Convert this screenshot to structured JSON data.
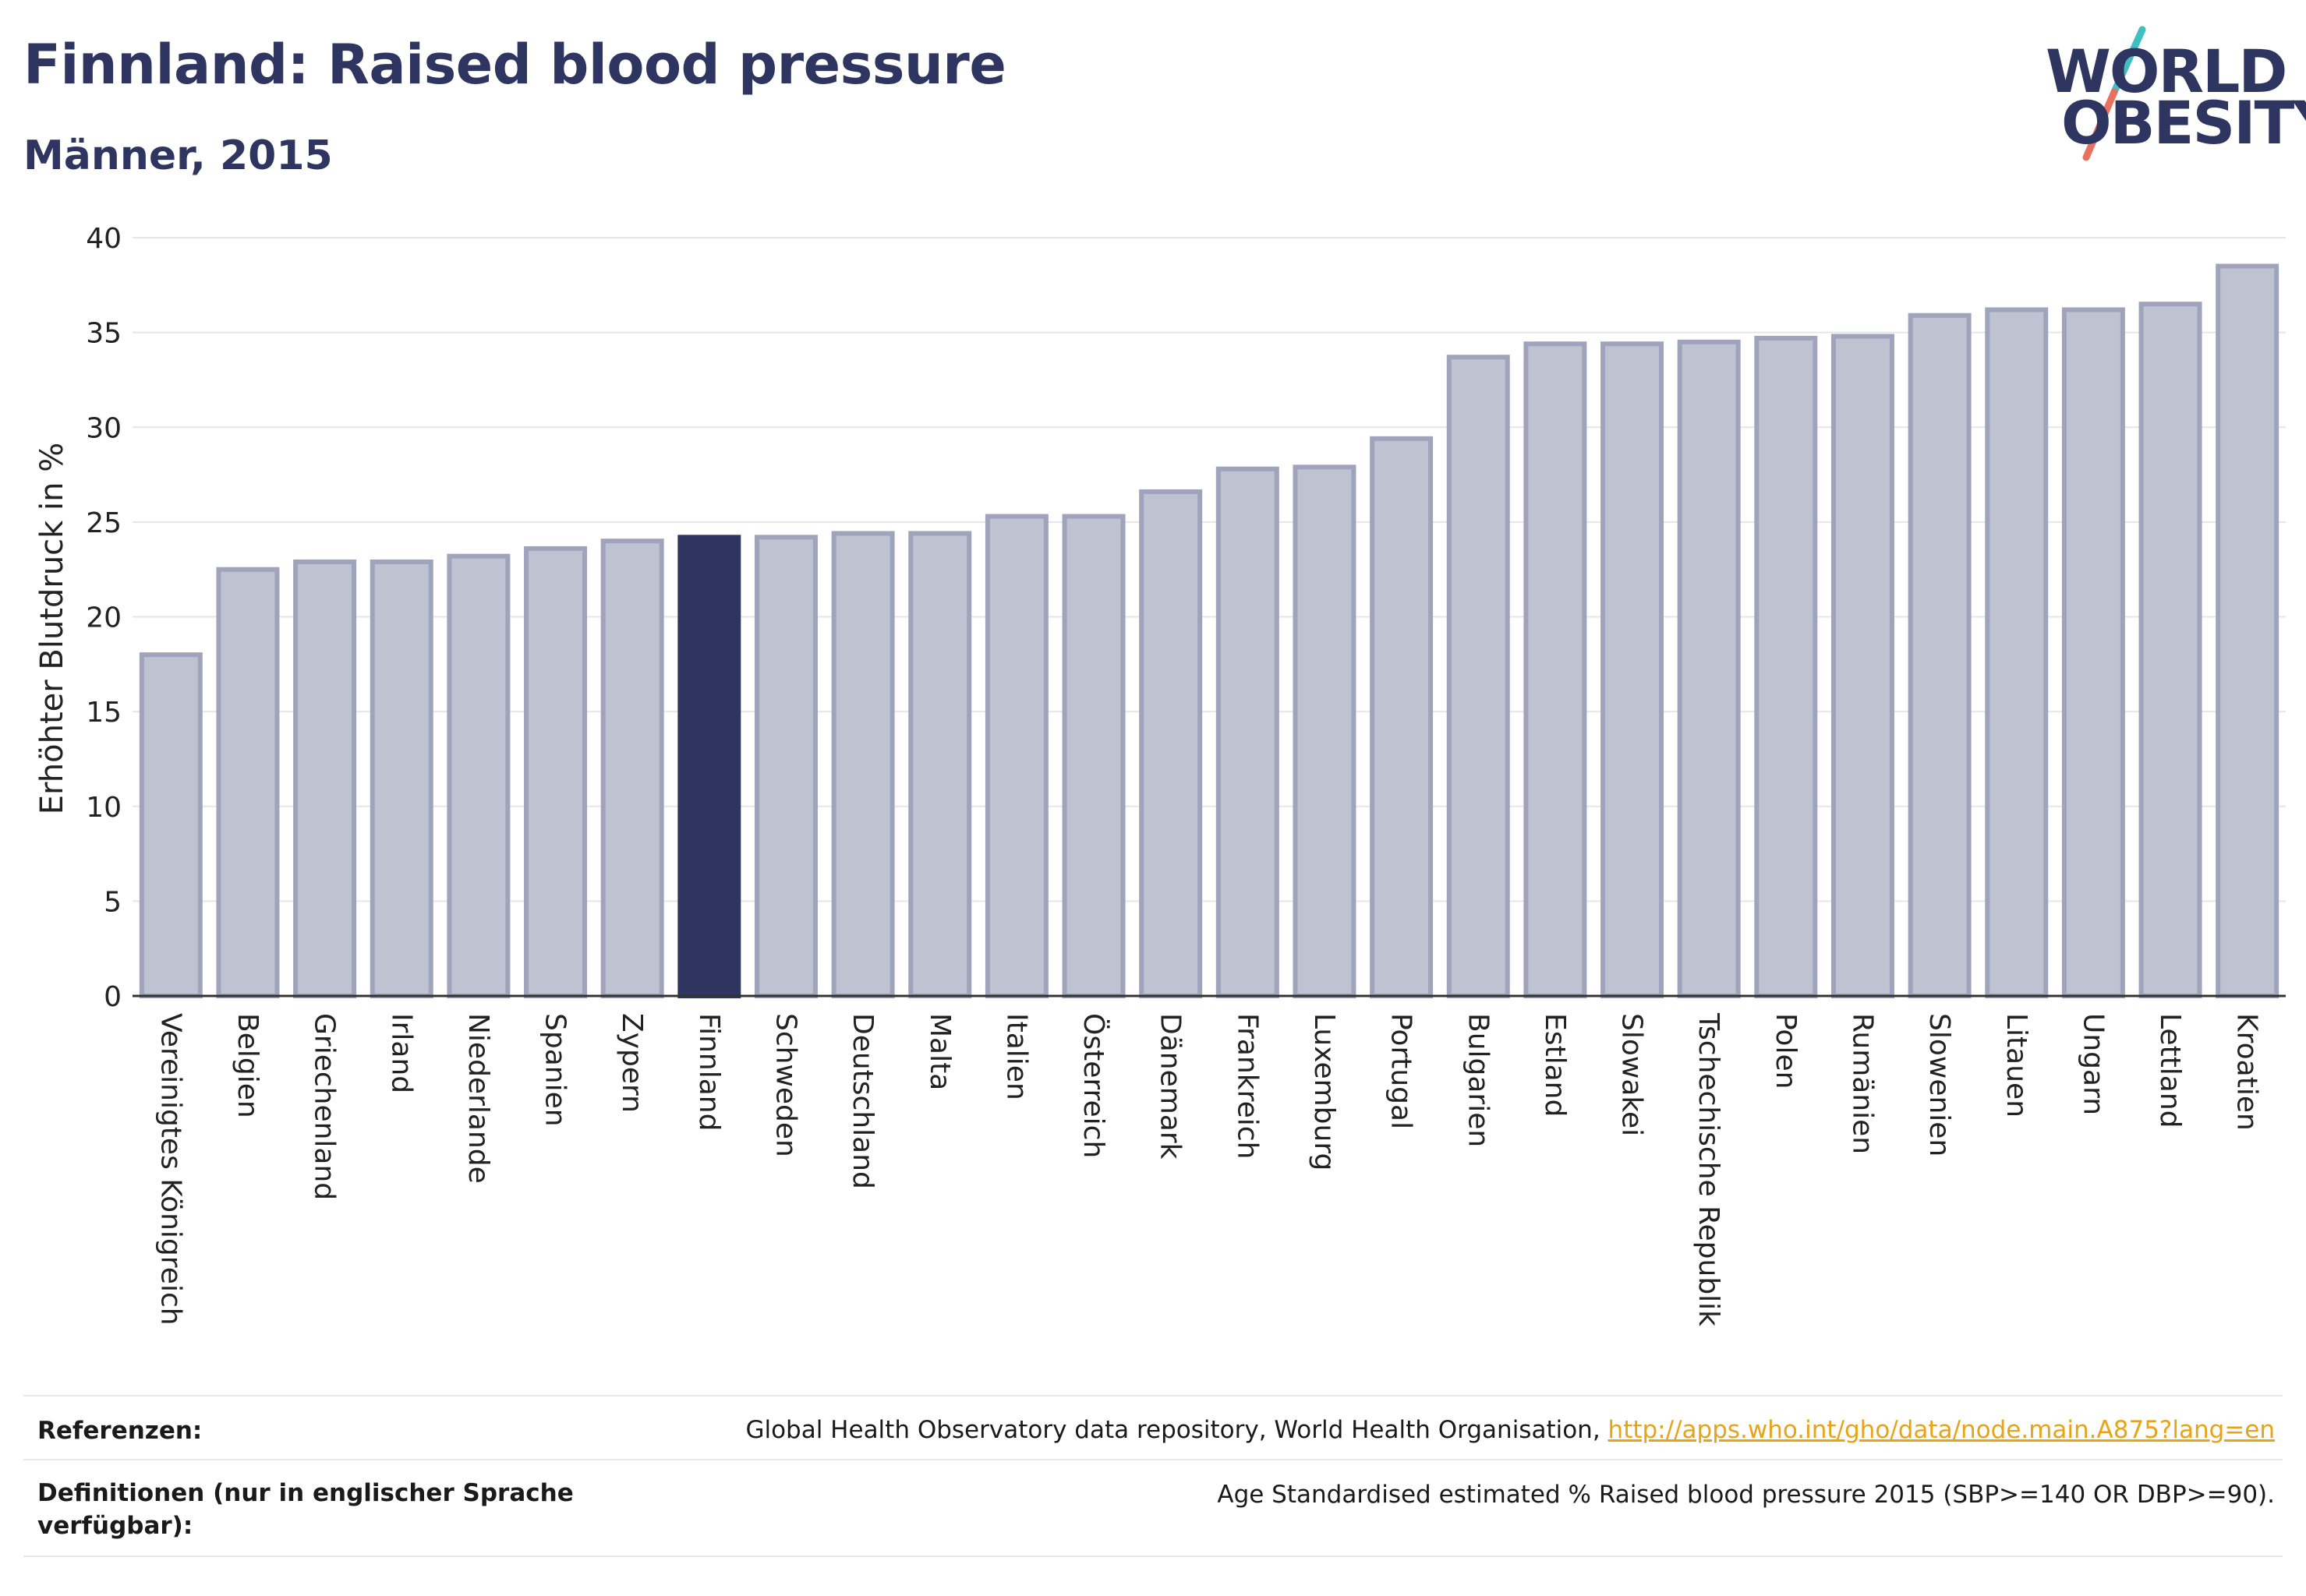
{
  "header": {
    "title": "Finnland: Raised blood pressure",
    "subtitle": "Männer, 2015"
  },
  "logo": {
    "line1": "WORLD",
    "line2": "OBESITY",
    "colors": {
      "text": "#2d3560",
      "slash_teal": "#3fbfbf",
      "slash_red": "#e8705e"
    }
  },
  "chart_data": {
    "type": "bar",
    "ylabel": "Erhöhter Blutdruck in %",
    "xlabel": "",
    "ylim": [
      0,
      40
    ],
    "yticks": [
      0,
      5,
      10,
      15,
      20,
      25,
      30,
      35,
      40
    ],
    "grid": true,
    "highlight": "Finnland",
    "colors": {
      "bar": "#bfc2d0",
      "bar_stroke": "#9fa3bb",
      "highlight": "#2d3560",
      "grid": "#e6e6e6",
      "axis": "#333333"
    },
    "categories": [
      "Vereinigtes Königreich",
      "Belgien",
      "Griechenland",
      "Irland",
      "Niederlande",
      "Spanien",
      "Zypern",
      "Finnland",
      "Schweden",
      "Deutschland",
      "Malta",
      "Italien",
      "Österreich",
      "Dänemark",
      "Frankreich",
      "Luxemburg",
      "Portugal",
      "Bulgarien",
      "Estland",
      "Slowakei",
      "Tschechische Republik",
      "Polen",
      "Rumänien",
      "Slowenien",
      "Litauen",
      "Ungarn",
      "Lettland",
      "Kroatien"
    ],
    "values": [
      18.0,
      22.5,
      22.9,
      22.9,
      23.2,
      23.6,
      24.0,
      24.2,
      24.2,
      24.4,
      24.4,
      25.3,
      25.3,
      26.6,
      27.8,
      27.9,
      29.4,
      33.7,
      34.4,
      34.4,
      34.5,
      34.7,
      34.8,
      35.9,
      36.2,
      36.2,
      36.5,
      38.5
    ]
  },
  "footer": {
    "references_label": "Referenzen:",
    "references_text": "Global Health Observatory data repository, World Health Organisation, ",
    "references_link": "http://apps.who.int/gho/data/node.main.A875?lang=en",
    "definitions_label": "Definitionen (nur in englischer Sprache verfügbar):",
    "definitions_text": "Age Standardised estimated % Raised blood pressure 2015 (SBP>=140 OR DBP>=90)."
  }
}
